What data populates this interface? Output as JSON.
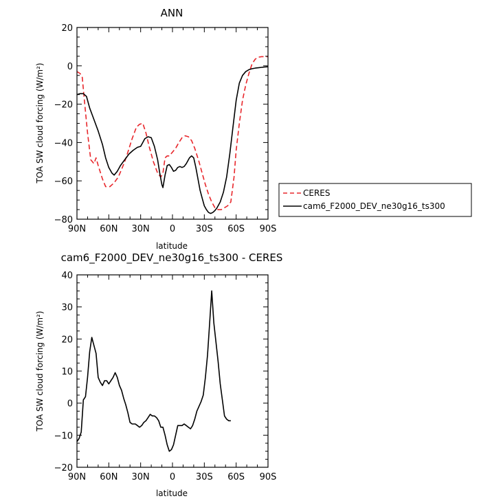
{
  "chart_data": [
    {
      "type": "line",
      "title": "ANN",
      "xlabel": "latitude",
      "ylabel": "TOA SW cloud forcing (W/m²)",
      "xlim": [
        -90,
        90
      ],
      "ylim": [
        -80,
        20
      ],
      "x_ticks": [
        -90,
        -60,
        -30,
        0,
        30,
        60,
        90
      ],
      "x_tick_labels": [
        "90N",
        "60N",
        "30N",
        "0",
        "30S",
        "60S",
        "90S"
      ],
      "y_ticks": [
        20,
        0,
        -20,
        -40,
        -60,
        -80
      ],
      "y_tick_labels": [
        "20",
        "0",
        "−20",
        "−40",
        "−60",
        "−80"
      ],
      "legend": {
        "position": "right",
        "entries": [
          "CERES",
          "cam6_F2000_DEV_ne30g16_ts300"
        ]
      },
      "series": [
        {
          "name": "CERES",
          "color": "#e8262b",
          "dash": "dashed",
          "points": [
            [
              -90,
              -3
            ],
            [
              -87,
              -4
            ],
            [
              -85,
              -6
            ],
            [
              -83,
              -18
            ],
            [
              -80,
              -35
            ],
            [
              -77,
              -49
            ],
            [
              -74,
              -51
            ],
            [
              -72,
              -48
            ],
            [
              -70,
              -52
            ],
            [
              -66,
              -59
            ],
            [
              -63,
              -63
            ],
            [
              -59,
              -63
            ],
            [
              -55,
              -61
            ],
            [
              -51,
              -58
            ],
            [
              -48,
              -54
            ],
            [
              -45,
              -50
            ],
            [
              -42,
              -45
            ],
            [
              -38,
              -38
            ],
            [
              -34,
              -32
            ],
            [
              -31,
              -30.5
            ],
            [
              -28,
              -30
            ],
            [
              -25,
              -35
            ],
            [
              -22,
              -42
            ],
            [
              -18,
              -50
            ],
            [
              -14,
              -56
            ],
            [
              -11,
              -58
            ],
            [
              -9,
              -56
            ],
            [
              -7,
              -48
            ],
            [
              -5,
              -47
            ],
            [
              -3,
              -47
            ],
            [
              0,
              -45
            ],
            [
              3,
              -43
            ],
            [
              6,
              -40
            ],
            [
              9,
              -37.5
            ],
            [
              12,
              -36.5
            ],
            [
              15,
              -37
            ],
            [
              18,
              -39
            ],
            [
              21,
              -43
            ],
            [
              25,
              -50
            ],
            [
              28,
              -56
            ],
            [
              31,
              -62
            ],
            [
              34,
              -67
            ],
            [
              37,
              -71
            ],
            [
              40,
              -74
            ],
            [
              43,
              -75
            ],
            [
              46,
              -75
            ],
            [
              49,
              -74
            ],
            [
              52,
              -73
            ],
            [
              55,
              -71
            ],
            [
              58,
              -58
            ],
            [
              60,
              -44
            ],
            [
              63,
              -30
            ],
            [
              66,
              -18
            ],
            [
              69,
              -10
            ],
            [
              72,
              -4
            ],
            [
              75,
              1
            ],
            [
              78,
              3.5
            ],
            [
              81,
              4.5
            ],
            [
              84,
              4.8
            ],
            [
              87,
              4.8
            ],
            [
              90,
              4.8
            ]
          ]
        },
        {
          "name": "cam6_F2000_DEV_ne30g16_ts300",
          "color": "#000000",
          "dash": "solid",
          "points": [
            [
              -90,
              -15
            ],
            [
              -87,
              -14.5
            ],
            [
              -84,
              -14.5
            ],
            [
              -81,
              -16
            ],
            [
              -78,
              -22
            ],
            [
              -74,
              -28
            ],
            [
              -70,
              -34
            ],
            [
              -66,
              -41
            ],
            [
              -63,
              -48
            ],
            [
              -60,
              -53
            ],
            [
              -57,
              -56
            ],
            [
              -55,
              -57
            ],
            [
              -52,
              -55
            ],
            [
              -49,
              -52
            ],
            [
              -45,
              -49
            ],
            [
              -41,
              -46
            ],
            [
              -37,
              -44
            ],
            [
              -33,
              -42.5
            ],
            [
              -30,
              -42
            ],
            [
              -28,
              -40
            ],
            [
              -26,
              -38
            ],
            [
              -23,
              -37
            ],
            [
              -20,
              -37.5
            ],
            [
              -17,
              -42
            ],
            [
              -14,
              -49
            ],
            [
              -12,
              -56
            ],
            [
              -10,
              -62
            ],
            [
              -9,
              -63.5
            ],
            [
              -7,
              -57
            ],
            [
              -5,
              -52
            ],
            [
              -3,
              -51.5
            ],
            [
              -1,
              -53
            ],
            [
              1,
              -55
            ],
            [
              3,
              -54.5
            ],
            [
              5,
              -53
            ],
            [
              7,
              -52.5
            ],
            [
              9,
              -53
            ],
            [
              11,
              -52.5
            ],
            [
              13,
              -51
            ],
            [
              16,
              -48
            ],
            [
              18,
              -47
            ],
            [
              20,
              -48
            ],
            [
              22,
              -53
            ],
            [
              24,
              -59
            ],
            [
              26,
              -65
            ],
            [
              28,
              -69
            ],
            [
              30,
              -73
            ],
            [
              32,
              -75
            ],
            [
              34,
              -76.5
            ],
            [
              36,
              -77
            ],
            [
              38,
              -76.5
            ],
            [
              40,
              -75.5
            ],
            [
              42,
              -74
            ],
            [
              45,
              -71
            ],
            [
              48,
              -66
            ],
            [
              51,
              -58
            ],
            [
              54,
              -46
            ],
            [
              57,
              -32
            ],
            [
              60,
              -18
            ],
            [
              63,
              -9
            ],
            [
              66,
              -5
            ],
            [
              69,
              -3
            ],
            [
              72,
              -2
            ],
            [
              75,
              -1.5
            ],
            [
              78,
              -1.2
            ],
            [
              81,
              -1.0
            ],
            [
              84,
              -0.8
            ],
            [
              87,
              -0.6
            ],
            [
              90,
              -0.5
            ]
          ]
        }
      ]
    },
    {
      "type": "line",
      "title": "cam6_F2000_DEV_ne30g16_ts300 - CERES",
      "xlabel": "latitude",
      "ylabel": "TOA SW cloud forcing (W/m²)",
      "xlim": [
        -90,
        90
      ],
      "ylim": [
        -20,
        40
      ],
      "x_ticks": [
        -90,
        -60,
        -30,
        0,
        30,
        60,
        90
      ],
      "x_tick_labels": [
        "90N",
        "60N",
        "30N",
        "0",
        "30S",
        "60S",
        "90S"
      ],
      "y_ticks": [
        40,
        30,
        20,
        10,
        0,
        -10,
        -20
      ],
      "y_tick_labels": [
        "40",
        "30",
        "20",
        "10",
        "0",
        "−10",
        "−20"
      ],
      "series": [
        {
          "color": "#000000",
          "dash": "solid",
          "points": [
            [
              -90,
              -12
            ],
            [
              -88,
              -11
            ],
            [
              -86,
              -9
            ],
            [
              -84,
              1
            ],
            [
              -82,
              2
            ],
            [
              -80,
              8
            ],
            [
              -78,
              16
            ],
            [
              -76,
              20.5
            ],
            [
              -74,
              18
            ],
            [
              -72,
              15.5
            ],
            [
              -70,
              8
            ],
            [
              -68,
              6.5
            ],
            [
              -66,
              5.5
            ],
            [
              -64,
              7
            ],
            [
              -62,
              7
            ],
            [
              -60,
              6
            ],
            [
              -58,
              7
            ],
            [
              -56,
              8
            ],
            [
              -54,
              9.5
            ],
            [
              -52,
              8
            ],
            [
              -50,
              5.5
            ],
            [
              -48,
              4
            ],
            [
              -46,
              1.5
            ],
            [
              -44,
              -0.5
            ],
            [
              -42,
              -3
            ],
            [
              -40,
              -6
            ],
            [
              -38,
              -6.5
            ],
            [
              -35,
              -6.5
            ],
            [
              -33,
              -7
            ],
            [
              -31,
              -7.5
            ],
            [
              -29,
              -7
            ],
            [
              -27,
              -6
            ],
            [
              -25,
              -5.5
            ],
            [
              -23,
              -4.5
            ],
            [
              -21,
              -3.5
            ],
            [
              -19,
              -4
            ],
            [
              -17,
              -4
            ],
            [
              -15,
              -4.5
            ],
            [
              -13,
              -5.5
            ],
            [
              -11,
              -7.5
            ],
            [
              -9,
              -7.5
            ],
            [
              -7,
              -10
            ],
            [
              -5,
              -13
            ],
            [
              -3,
              -15
            ],
            [
              -1,
              -14.5
            ],
            [
              1,
              -13
            ],
            [
              3,
              -10
            ],
            [
              5,
              -7
            ],
            [
              7,
              -7
            ],
            [
              9,
              -7
            ],
            [
              11,
              -6.5
            ],
            [
              13,
              -7
            ],
            [
              15,
              -7.5
            ],
            [
              17,
              -8
            ],
            [
              19,
              -7
            ],
            [
              21,
              -5
            ],
            [
              23,
              -2.5
            ],
            [
              25,
              -1
            ],
            [
              27,
              0.5
            ],
            [
              29,
              2.5
            ],
            [
              31,
              8
            ],
            [
              33,
              15
            ],
            [
              35,
              25
            ],
            [
              37,
              35
            ],
            [
              39,
              25
            ],
            [
              41,
              19
            ],
            [
              43,
              13
            ],
            [
              45,
              6
            ],
            [
              47,
              1
            ],
            [
              49,
              -4
            ],
            [
              51,
              -5
            ],
            [
              53,
              -5.5
            ],
            [
              55,
              -5.5
            ]
          ]
        }
      ]
    }
  ]
}
